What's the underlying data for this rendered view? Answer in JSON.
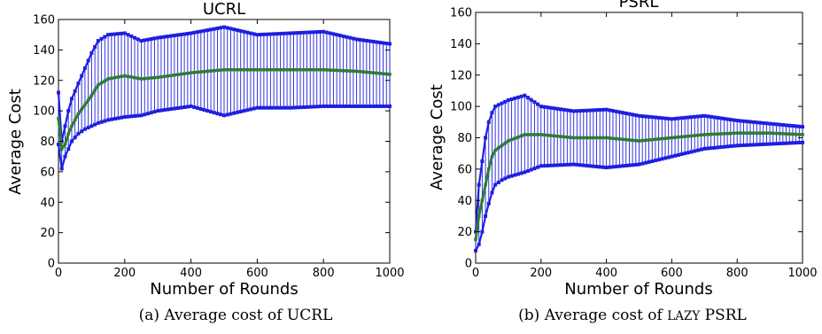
{
  "chart_data": [
    {
      "type": "line",
      "title": "UCRL",
      "xlabel": "Number of Rounds",
      "ylabel": "Average Cost",
      "xlim": [
        0,
        1000
      ],
      "ylim": [
        0,
        160
      ],
      "x_ticks": [
        "0",
        "200",
        "400",
        "600",
        "800",
        "1000"
      ],
      "y_ticks": [
        "0",
        "20",
        "40",
        "60",
        "80",
        "100",
        "120",
        "140",
        "160"
      ],
      "error_bars": true,
      "colors": {
        "mean": "#2e7d32",
        "bounds": "#1f1fe0",
        "band": "#1f1fe0"
      },
      "x": [
        0,
        10,
        20,
        30,
        40,
        60,
        80,
        100,
        120,
        150,
        200,
        250,
        300,
        400,
        500,
        600,
        700,
        800,
        900,
        1000
      ],
      "series": [
        {
          "name": "mean",
          "values": [
            95,
            75,
            78,
            85,
            90,
            98,
            104,
            110,
            117,
            121,
            123,
            121,
            122,
            125,
            127,
            127,
            127,
            127,
            126,
            124
          ]
        },
        {
          "name": "upper",
          "values": [
            112,
            80,
            90,
            100,
            108,
            118,
            128,
            138,
            146,
            150,
            151,
            146,
            148,
            151,
            155,
            150,
            151,
            152,
            147,
            144
          ]
        },
        {
          "name": "lower",
          "values": [
            78,
            62,
            70,
            75,
            80,
            85,
            88,
            90,
            92,
            94,
            96,
            97,
            100,
            103,
            97,
            102,
            102,
            103,
            103,
            103
          ]
        }
      ],
      "caption_label": "(a) Average cost of UCRL"
    },
    {
      "type": "line",
      "title": "PSRL",
      "xlabel": "Number of Rounds",
      "ylabel": "Average Cost",
      "xlim": [
        0,
        1000
      ],
      "ylim": [
        0,
        160
      ],
      "x_ticks": [
        "0",
        "200",
        "400",
        "600",
        "800",
        "1000"
      ],
      "y_ticks": [
        "0",
        "20",
        "40",
        "60",
        "80",
        "100",
        "120",
        "140",
        "160"
      ],
      "error_bars": true,
      "colors": {
        "mean": "#2e7d32",
        "bounds": "#1f1fe0",
        "band": "#1f1fe0"
      },
      "x": [
        0,
        10,
        20,
        30,
        40,
        50,
        60,
        80,
        100,
        150,
        200,
        300,
        400,
        500,
        600,
        700,
        800,
        900,
        1000
      ],
      "series": [
        {
          "name": "mean",
          "values": [
            15,
            30,
            40,
            50,
            60,
            68,
            72,
            75,
            78,
            82,
            82,
            80,
            80,
            78,
            80,
            82,
            83,
            83,
            82
          ]
        },
        {
          "name": "upper",
          "values": [
            20,
            50,
            65,
            80,
            90,
            96,
            100,
            102,
            104,
            107,
            100,
            97,
            98,
            94,
            92,
            94,
            91,
            89,
            87
          ]
        },
        {
          "name": "lower",
          "values": [
            8,
            12,
            20,
            30,
            38,
            45,
            50,
            53,
            55,
            58,
            62,
            63,
            61,
            63,
            68,
            73,
            75,
            76,
            77
          ]
        }
      ],
      "caption_label": "(b) Average cost of ",
      "caption_sc": "LAZY",
      "caption_tail": " PSRL"
    }
  ]
}
